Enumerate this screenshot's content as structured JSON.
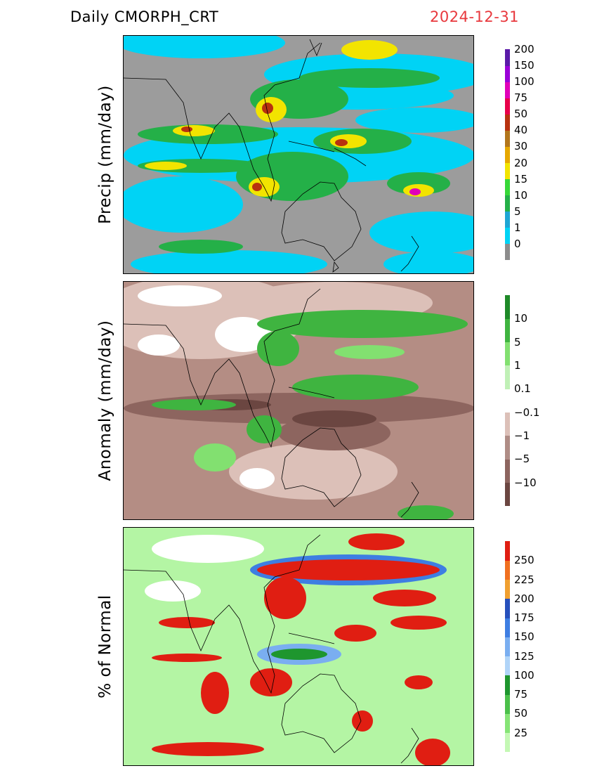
{
  "header": {
    "product": "Daily  CMORPH_CRT",
    "date": "2024-12-31",
    "date_color": "#e8383d"
  },
  "panels": [
    {
      "ylabel": "Precip  (mm/day)",
      "background": "#9c9c9c",
      "colorbar": {
        "colors": [
          "#8c8c8c",
          "#00d3f5",
          "#1ea6d4",
          "#24b048",
          "#37d838",
          "#f2e400",
          "#e6a800",
          "#b2761c",
          "#b8320f",
          "#e8004a",
          "#e000b8",
          "#9a00d8",
          "#5a1aa8"
        ],
        "ticks": [
          "0",
          "1",
          "5",
          "10",
          "15",
          "20",
          "30",
          "40",
          "50",
          "75",
          "100",
          "150",
          "200"
        ]
      }
    },
    {
      "ylabel": "Anomaly  (mm/day)",
      "background": "#b48d84",
      "colorbar": {
        "colors": [
          "#6b4641",
          "#8d655f",
          "#af8d86",
          "#dcc0b8",
          "#ffffff",
          "#c0f0b6",
          "#82e070",
          "#3fb440",
          "#1e8a28"
        ],
        "ticks": [
          "−10",
          "−5",
          "−1",
          "−0.1",
          "0.1",
          "1",
          "5",
          "10"
        ]
      }
    },
    {
      "ylabel": "%  of  Normal",
      "background": "#b4f5a4",
      "colorbar": {
        "colors": [
          "#c4f8b4",
          "#86e476",
          "#4bc04a",
          "#1e962e",
          "#b0d4f8",
          "#7aaef0",
          "#3e7ee2",
          "#2650bc",
          "#f0a030",
          "#f07020",
          "#e01e12"
        ],
        "ticks": [
          "25",
          "50",
          "75",
          "100",
          "125",
          "150",
          "175",
          "200",
          "225",
          "250"
        ]
      }
    }
  ]
}
